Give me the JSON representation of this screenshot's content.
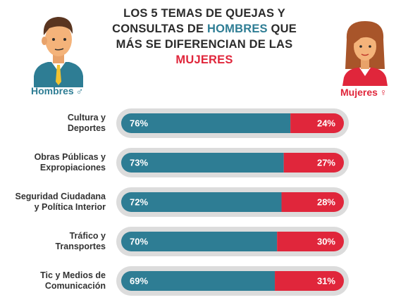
{
  "title": {
    "prefix": "LOS 5 TEMAS DE QUEJAS Y CONSULTAS DE",
    "men_word": "HOMBRES",
    "middle": "QUE MÁS SE DIFERENCIAN DE LAS",
    "women_word": "MUJERES"
  },
  "legend": {
    "men_label": "Hombres",
    "men_symbol": "♂",
    "women_label": "Mujeres",
    "women_symbol": "♀"
  },
  "colors": {
    "men": "#2e7d94",
    "women": "#e0263b",
    "track": "#dcdcdc",
    "title_men": "#2e7d94",
    "title_women": "#e0263b"
  },
  "icons": [
    "man-avatar-icon",
    "woman-avatar-icon",
    "male-symbol-icon",
    "female-symbol-icon"
  ],
  "chart_data": {
    "type": "bar",
    "stacked": true,
    "orientation": "horizontal",
    "categories": [
      [
        "Cultura y",
        "Deportes"
      ],
      [
        "Obras Públicas y",
        "Expropiaciones"
      ],
      [
        "Seguridad Ciudadana",
        "y Política Interior"
      ],
      [
        "Tráfico y",
        "Transportes"
      ],
      [
        "Tic y Medios de",
        "Comunicación"
      ]
    ],
    "series": [
      {
        "name": "Hombres",
        "values": [
          76,
          73,
          72,
          70,
          69
        ],
        "labels": [
          "76%",
          "73%",
          "72%",
          "70%",
          "69%"
        ]
      },
      {
        "name": "Mujeres",
        "values": [
          24,
          27,
          28,
          30,
          31
        ],
        "labels": [
          "24%",
          "27%",
          "28%",
          "30%",
          "31%"
        ]
      }
    ],
    "xlim": [
      0,
      100
    ]
  }
}
